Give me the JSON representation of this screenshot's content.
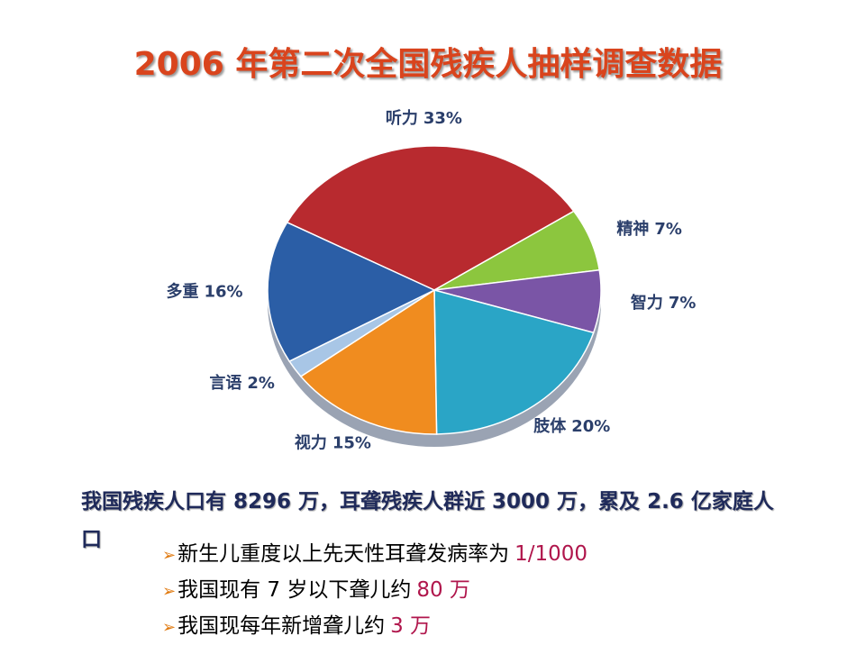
{
  "chart_data": {
    "type": "pie",
    "title": "2006 年第二次全国残疾人抽样调查数据",
    "categories": [
      "听力",
      "精神",
      "智力",
      "肢体",
      "视力",
      "言语",
      "多重"
    ],
    "values": [
      33,
      7,
      7,
      20,
      15,
      2,
      16
    ],
    "value_labels": [
      "33%",
      "7%",
      "7%",
      "20%",
      "15%",
      "2%",
      "16%"
    ],
    "colors": [
      "#b82a2f",
      "#8cc63e",
      "#7a55a6",
      "#2aa5c6",
      "#f08c1f",
      "#a8c6e6",
      "#2b5ea6"
    ]
  },
  "summary": "我国残疾人口有 8296 万，耳聋残疾人群近 3000 万，累及 2.6 亿家庭人口",
  "notes": [
    {
      "text": "新生儿重度以上先天性耳聋发病率为",
      "highlight": "1/1000"
    },
    {
      "text": "我国现有 7 岁以下聋儿约",
      "highlight": "80 万"
    },
    {
      "text": "我国现每年新增聋儿约",
      "highlight": "3 万"
    }
  ]
}
